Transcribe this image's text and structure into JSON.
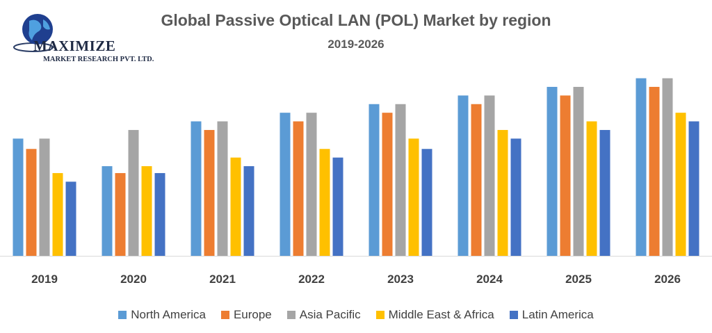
{
  "logo": {
    "name": "MAXIMIZE",
    "subtitle": "MARKET RESEARCH PVT. LTD."
  },
  "chart_data": {
    "type": "bar",
    "title": "Global Passive Optical LAN (POL) Market by region",
    "subtitle": "2019-2026",
    "xlabel": "",
    "ylabel": "",
    "ylim": [
      0,
      100
    ],
    "grid": false,
    "legend_position": "bottom",
    "categories": [
      "2019",
      "2020",
      "2021",
      "2022",
      "2023",
      "2024",
      "2025",
      "2026"
    ],
    "series": [
      {
        "name": "North America",
        "color": "#5b9bd5",
        "values": [
          68,
          52,
          78,
          83,
          88,
          93,
          98,
          103
        ]
      },
      {
        "name": "Europe",
        "color": "#ed7d31",
        "values": [
          62,
          48,
          73,
          78,
          83,
          88,
          93,
          98
        ]
      },
      {
        "name": "Asia Pacific",
        "color": "#a5a5a5",
        "values": [
          68,
          73,
          78,
          83,
          88,
          93,
          98,
          103
        ]
      },
      {
        "name": "Middle East & Africa",
        "color": "#ffc000",
        "values": [
          48,
          52,
          57,
          62,
          68,
          73,
          78,
          83
        ]
      },
      {
        "name": "Latin America",
        "color": "#4472c4",
        "values": [
          43,
          48,
          52,
          57,
          62,
          68,
          73,
          78
        ]
      }
    ]
  }
}
